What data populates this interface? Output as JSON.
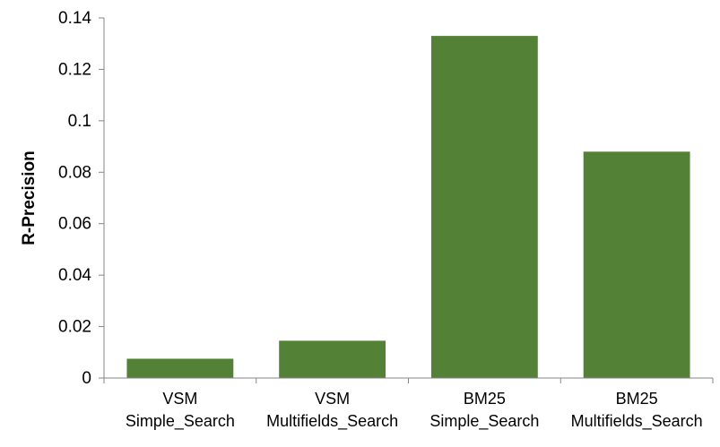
{
  "chart_data": {
    "type": "bar",
    "title": "",
    "xlabel": "",
    "ylabel": "R-Precision",
    "ylim": [
      0,
      0.14
    ],
    "yticks": [
      "0",
      "0.02",
      "0.04",
      "0.06",
      "0.08",
      "0.1",
      "0.12",
      "0.14"
    ],
    "categories": [
      [
        "VSM",
        "Simple_Search"
      ],
      [
        "VSM",
        "Multifields_Search"
      ],
      [
        "BM25",
        "Simple_Search"
      ],
      [
        "BM25",
        "Multifields_Search"
      ]
    ],
    "values": [
      0.0075,
      0.0145,
      0.133,
      0.088
    ],
    "bar_color": "#538135",
    "grid": false,
    "legend": "none"
  }
}
